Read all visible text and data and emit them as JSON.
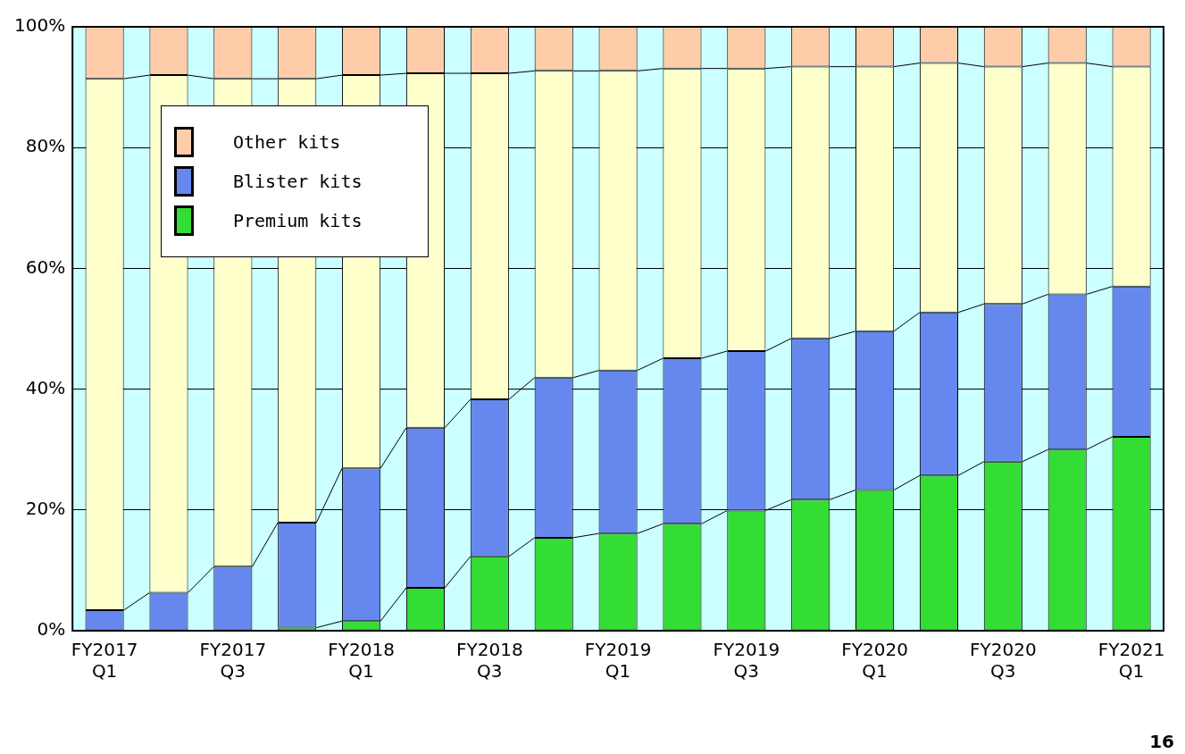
{
  "chart_data": {
    "type": "bar",
    "stacked": true,
    "categories": [
      "FY2017 Q1",
      null,
      "FY2017 Q3",
      null,
      "FY2018 Q1",
      null,
      "FY2018 Q3",
      null,
      "FY2019 Q1",
      null,
      "FY2019 Q3",
      null,
      "FY2020 Q1",
      null,
      "FY2020 Q3",
      null,
      "FY2021 Q1"
    ],
    "series": [
      {
        "name": "Premium kits",
        "color": "#33dd33",
        "values": [
          0,
          0,
          0,
          0.5,
          1.6,
          7.1,
          12.3,
          15.4,
          16.1,
          17.7,
          19.9,
          21.7,
          23.3,
          25.7,
          28.0,
          30.0,
          32.1
        ]
      },
      {
        "name": "Blister kits",
        "color": "#6688ee",
        "values": [
          3.4,
          6.3,
          10.6,
          17.4,
          25.3,
          26.5,
          26.0,
          26.5,
          27.0,
          27.4,
          26.4,
          26.7,
          26.3,
          27.0,
          26.1,
          25.7,
          24.9
        ]
      },
      {
        "color": "#ffffcc",
        "values": [
          88.0,
          85.7,
          80.8,
          73.5,
          65.1,
          58.7,
          54.0,
          50.8,
          49.6,
          48.0,
          46.8,
          45.0,
          43.8,
          41.3,
          39.3,
          38.3,
          36.4
        ]
      },
      {
        "name": "Other kits",
        "color": "#ffccaa",
        "values": [
          8.6,
          8.0,
          8.6,
          8.6,
          8.0,
          7.7,
          7.7,
          7.3,
          7.3,
          6.9,
          6.9,
          6.6,
          6.6,
          6.0,
          6.6,
          6.0,
          6.6
        ]
      }
    ],
    "ylim": [
      0,
      100
    ],
    "yticks": [
      {
        "value": 0,
        "label": "0%"
      },
      {
        "value": 20,
        "label": "20%"
      },
      {
        "value": 40,
        "label": "40%"
      },
      {
        "value": 60,
        "label": "60%"
      },
      {
        "value": 80,
        "label": "80%"
      },
      {
        "value": 100,
        "label": "100%"
      }
    ],
    "grid": "y",
    "legend": "top left",
    "annotations": [
      "16"
    ]
  }
}
